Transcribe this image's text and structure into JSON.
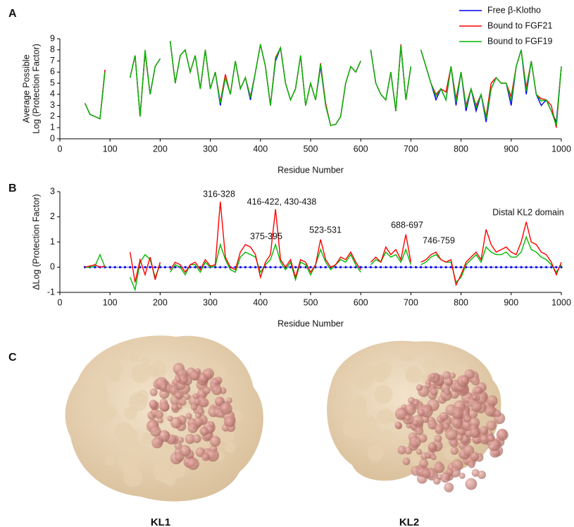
{
  "panel_labels": [
    "A",
    "B",
    "C"
  ],
  "structures": [
    "KL1",
    "KL2"
  ],
  "chart_data": [
    {
      "type": "line",
      "ylabel": [
        "Average Possible",
        "Log (Protection Factor)"
      ],
      "xlabel": "Residue Number",
      "xlim": [
        0,
        1000
      ],
      "xticks": [
        0,
        100,
        200,
        300,
        400,
        500,
        600,
        700,
        800,
        900,
        1000
      ],
      "ylim": [
        0,
        9
      ],
      "yticks": [
        0,
        1,
        2,
        3,
        4,
        5,
        6,
        7,
        8,
        9
      ],
      "legend": "upper right",
      "x": [
        50,
        60,
        70,
        80,
        90,
        100,
        110,
        120,
        130,
        140,
        150,
        160,
        170,
        180,
        190,
        200,
        210,
        220,
        230,
        240,
        250,
        260,
        270,
        280,
        290,
        300,
        310,
        320,
        330,
        340,
        350,
        360,
        370,
        380,
        390,
        400,
        410,
        420,
        430,
        440,
        450,
        460,
        470,
        480,
        490,
        500,
        510,
        520,
        530,
        540,
        550,
        560,
        570,
        580,
        590,
        600,
        610,
        620,
        630,
        640,
        650,
        660,
        670,
        680,
        690,
        700,
        710,
        720,
        730,
        740,
        750,
        760,
        770,
        780,
        790,
        800,
        810,
        820,
        830,
        840,
        850,
        860,
        870,
        880,
        890,
        900,
        910,
        920,
        930,
        940,
        950,
        960,
        970,
        980,
        990,
        1000
      ],
      "series": [
        {
          "name": "Free β-Klotho",
          "color": "#0000ee",
          "values": [
            3.2,
            2.2,
            2.0,
            1.8,
            6.2,
            null,
            null,
            null,
            null,
            5.5,
            7.5,
            2.0,
            7.8,
            4.0,
            6.5,
            7.2,
            null,
            8.8,
            5.0,
            7.5,
            8.0,
            6.0,
            7.5,
            4.5,
            8.0,
            4.5,
            6.0,
            3.0,
            5.5,
            4.0,
            7.0,
            4.5,
            5.5,
            3.5,
            6.0,
            8.5,
            6.5,
            3.0,
            7.0,
            8.2,
            5.0,
            3.5,
            4.5,
            7.5,
            3.0,
            5.0,
            3.5,
            6.5,
            3.0,
            1.2,
            1.3,
            2.0,
            5.0,
            6.5,
            6.0,
            7.0,
            null,
            8.0,
            5.0,
            4.0,
            3.5,
            6.0,
            2.5,
            8.3,
            3.5,
            6.5,
            null,
            8.0,
            6.5,
            5.0,
            3.5,
            4.5,
            3.5,
            6.5,
            3.0,
            6.0,
            2.5,
            4.5,
            2.5,
            4.0,
            1.5,
            4.5,
            5.5,
            5.0,
            5.0,
            3.0,
            6.5,
            8.0,
            4.0,
            7.0,
            4.0,
            3.0,
            3.5,
            2.5,
            1.5,
            6.5
          ]
        },
        {
          "name": "Bound to FGF21",
          "color": "#ff0000",
          "values": [
            3.2,
            2.2,
            2.0,
            1.8,
            6.2,
            null,
            null,
            null,
            null,
            5.5,
            7.5,
            2.0,
            7.8,
            4.0,
            6.5,
            7.2,
            null,
            8.8,
            5.0,
            7.5,
            8.0,
            6.0,
            7.5,
            4.5,
            8.0,
            4.5,
            6.0,
            3.3,
            5.8,
            4.0,
            7.0,
            4.5,
            5.5,
            3.8,
            6.0,
            8.5,
            6.5,
            3.0,
            7.3,
            8.2,
            5.0,
            3.5,
            4.5,
            7.5,
            3.0,
            5.0,
            3.5,
            6.8,
            3.2,
            1.2,
            1.3,
            2.0,
            5.0,
            6.5,
            6.0,
            7.0,
            null,
            8.0,
            5.0,
            4.0,
            3.5,
            6.0,
            2.5,
            8.5,
            3.5,
            6.5,
            null,
            8.0,
            6.5,
            5.0,
            4.0,
            4.5,
            4.2,
            6.5,
            3.6,
            6.0,
            3.0,
            4.5,
            3.0,
            4.0,
            2.0,
            5.0,
            5.5,
            5.0,
            5.0,
            3.8,
            6.5,
            8.0,
            4.6,
            7.0,
            4.0,
            3.6,
            3.5,
            3.0,
            1.0,
            6.5
          ]
        },
        {
          "name": "Bound to FGF19",
          "color": "#00bb00",
          "values": [
            3.2,
            2.2,
            2.0,
            1.8,
            6.0,
            null,
            null,
            null,
            null,
            5.5,
            7.5,
            2.0,
            8.0,
            4.0,
            6.5,
            7.2,
            null,
            8.8,
            5.0,
            7.5,
            8.0,
            6.0,
            7.5,
            4.5,
            8.0,
            4.5,
            6.0,
            3.2,
            5.5,
            4.0,
            7.0,
            4.5,
            5.5,
            3.7,
            6.0,
            8.5,
            6.5,
            3.0,
            7.2,
            8.2,
            5.0,
            3.5,
            4.5,
            7.5,
            3.0,
            5.0,
            3.5,
            6.7,
            3.0,
            1.2,
            1.3,
            2.0,
            5.0,
            6.5,
            6.0,
            7.0,
            null,
            8.0,
            5.0,
            4.0,
            3.5,
            6.0,
            2.5,
            8.4,
            3.5,
            6.5,
            null,
            8.0,
            6.5,
            5.0,
            3.8,
            4.5,
            3.5,
            6.5,
            3.3,
            6.0,
            2.8,
            4.5,
            2.8,
            4.0,
            1.8,
            4.5,
            5.5,
            5.0,
            5.0,
            3.4,
            6.5,
            8.0,
            4.3,
            7.0,
            4.0,
            3.4,
            3.5,
            2.5,
            1.2,
            6.5
          ]
        }
      ]
    },
    {
      "type": "line",
      "ylabel": [
        "ΔLog (Protection Factor)"
      ],
      "xlabel": "Residue Number",
      "xlim": [
        0,
        1000
      ],
      "xticks": [
        0,
        100,
        200,
        300,
        400,
        500,
        600,
        700,
        800,
        900,
        1000
      ],
      "ylim": [
        -1,
        3
      ],
      "yticks": [
        -1,
        0,
        1,
        2,
        3
      ],
      "annotations": [
        "316-328",
        "375-395",
        "416-422, 430-438",
        "523-531",
        "688-697",
        "746-759",
        "Distal KL2 domain"
      ],
      "x": [
        50,
        60,
        70,
        80,
        90,
        100,
        110,
        120,
        130,
        140,
        150,
        160,
        170,
        180,
        190,
        200,
        210,
        220,
        230,
        240,
        250,
        260,
        270,
        280,
        290,
        300,
        310,
        320,
        330,
        340,
        350,
        360,
        370,
        380,
        390,
        400,
        410,
        420,
        430,
        440,
        450,
        460,
        470,
        480,
        490,
        500,
        510,
        520,
        530,
        540,
        550,
        560,
        570,
        580,
        590,
        600,
        610,
        620,
        630,
        640,
        650,
        660,
        670,
        680,
        690,
        700,
        710,
        720,
        730,
        740,
        750,
        760,
        770,
        780,
        790,
        800,
        810,
        820,
        830,
        840,
        850,
        860,
        870,
        880,
        890,
        900,
        910,
        920,
        930,
        940,
        950,
        960,
        970,
        980,
        990,
        1000
      ],
      "series": [
        {
          "color": "#0000ee",
          "marker": true,
          "values": [
            0,
            0,
            0,
            0,
            0,
            0,
            0,
            0,
            0,
            0,
            0,
            0,
            0,
            0,
            0,
            0,
            0,
            0,
            0,
            0,
            0,
            0,
            0,
            0,
            0,
            0,
            0,
            0,
            0,
            0,
            0,
            0,
            0,
            0,
            0,
            0,
            0,
            0,
            0,
            0,
            0,
            0,
            0,
            0,
            0,
            0,
            0,
            0,
            0,
            0,
            0,
            0,
            0,
            0,
            0,
            0,
            0,
            0,
            0,
            0,
            0,
            0,
            0,
            0,
            0,
            0,
            0,
            0,
            0,
            0,
            0,
            0,
            0,
            0,
            0,
            0,
            0,
            0,
            0,
            0,
            0,
            0,
            0,
            0,
            0,
            0,
            0,
            0,
            0,
            0,
            0,
            0,
            0,
            0,
            0,
            0
          ]
        },
        {
          "color": "#00bb00",
          "values": [
            0,
            0,
            0.05,
            0.5,
            0,
            null,
            null,
            null,
            null,
            -0.4,
            -0.9,
            0.2,
            0.5,
            0.3,
            -0.4,
            0.1,
            null,
            -0.2,
            0.1,
            0,
            -0.3,
            0.1,
            0.1,
            -0.2,
            0.2,
            0,
            0.05,
            0.9,
            0.3,
            -0.1,
            -0.2,
            0.4,
            0.6,
            0.5,
            0.4,
            -0.2,
            0.1,
            0.3,
            0.9,
            0.2,
            -0.1,
            0.2,
            -0.5,
            0.2,
            0.1,
            -0.3,
            0.1,
            0.7,
            0.2,
            -0.1,
            0.1,
            0.3,
            0.2,
            0.5,
            0.1,
            -0.2,
            null,
            0.1,
            0.3,
            0.2,
            0.6,
            0.4,
            0.5,
            0.2,
            0.7,
            0.1,
            null,
            0.1,
            0.2,
            0.4,
            0.5,
            0.3,
            0.2,
            0.2,
            -0.6,
            -0.4,
            0.1,
            0.3,
            0.5,
            0.2,
            0.8,
            0.6,
            0.5,
            0.5,
            0.6,
            0.4,
            0.4,
            0.6,
            1.2,
            0.7,
            0.6,
            0.4,
            0.3,
            0.1,
            -0.2,
            0.1
          ]
        },
        {
          "color": "#ff0000",
          "values": [
            0,
            0.05,
            0.1,
            0,
            0.05,
            null,
            null,
            null,
            null,
            0.6,
            -0.6,
            0.3,
            -0.3,
            0.4,
            -0.5,
            0.2,
            null,
            -0.1,
            0.2,
            0.1,
            -0.2,
            0.1,
            0.2,
            -0.1,
            0.3,
            0.05,
            0.1,
            2.6,
            0.4,
            0,
            -0.1,
            0.6,
            0.9,
            0.8,
            0.5,
            -0.4,
            0.2,
            0.5,
            2.3,
            0.3,
            0,
            0.3,
            -0.4,
            0.3,
            0.2,
            -0.2,
            0.1,
            1.1,
            0.3,
            0,
            0.1,
            0.4,
            0.3,
            0.6,
            0.2,
            -0.1,
            null,
            0.2,
            0.4,
            0.2,
            0.8,
            0.5,
            0.7,
            0.3,
            1.3,
            0.2,
            null,
            0.2,
            0.3,
            0.5,
            0.6,
            0.3,
            0.2,
            0.3,
            -0.7,
            -0.3,
            0.2,
            0.4,
            0.6,
            0.3,
            1.5,
            0.9,
            0.6,
            0.7,
            0.8,
            0.6,
            0.5,
            1.0,
            1.8,
            1.0,
            0.9,
            0.6,
            0.5,
            0.2,
            -0.3,
            0.2
          ]
        }
      ]
    }
  ]
}
